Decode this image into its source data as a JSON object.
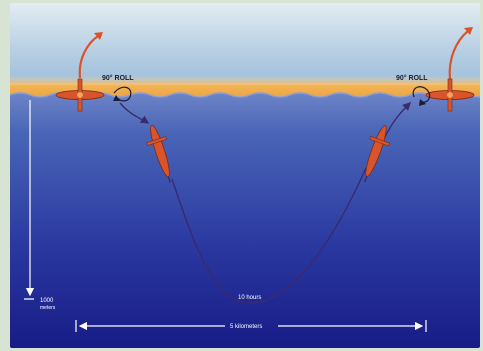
{
  "labels": {
    "roll_left": "90° ROLL",
    "roll_right": "90° ROLL",
    "depth_value": "1000",
    "depth_unit": "meters",
    "duration": "10 hours",
    "distance": "5 kilometers"
  },
  "colors": {
    "sky_top": "#d8e4ee",
    "sky_bottom": "#a9c6e0",
    "surface_band": "#f2b14f",
    "water_top": "#3f5fb0",
    "water_bottom": "#1a1f86",
    "glider_body": "#d9542a",
    "path_line": "#3a2a6e"
  },
  "icons": [
    "glider-icon",
    "roll-arrow-icon",
    "flight-path-arrow-icon"
  ]
}
